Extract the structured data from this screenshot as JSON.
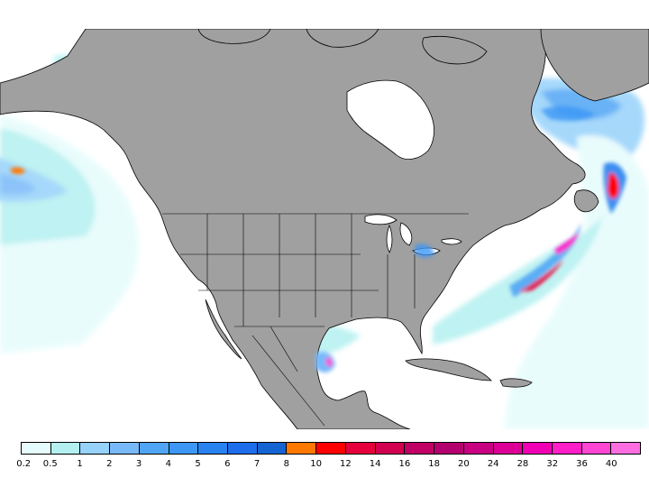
{
  "legend": {
    "colors": [
      "#e6fcfc",
      "#b4f0f0",
      "#96d2fa",
      "#78b9fa",
      "#50a5f5",
      "#3c97f5",
      "#2882f0",
      "#1e6eeb",
      "#1464d2",
      "#ff7800",
      "#ff0000",
      "#e6003c",
      "#d20050",
      "#c00064",
      "#b4006e",
      "#c80082",
      "#dc0096",
      "#f000b4",
      "#ff1ec8",
      "#ff46d2",
      "#ff6ee1"
    ],
    "labels": [
      "0.2",
      "0.5",
      "1",
      "2",
      "3",
      "4",
      "5",
      "6",
      "7",
      "8",
      "10",
      "12",
      "14",
      "16",
      "18",
      "20",
      "24",
      "28",
      "32",
      "36",
      "40"
    ]
  },
  "map": {
    "land_color": "#a0a0a0",
    "ocean_color": "#ffffff",
    "border_color": "#000000"
  }
}
